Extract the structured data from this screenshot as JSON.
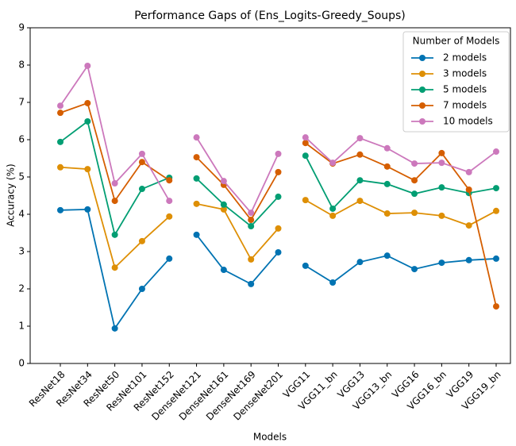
{
  "chart_data": {
    "type": "line",
    "title": "Performance Gaps of (Ens_Logits-Greedy_Soups)",
    "xlabel": "Models",
    "ylabel": "Accuracy (%)",
    "categories": [
      "ResNet18",
      "ResNet34",
      "ResNet50",
      "ResNet101",
      "ResNet152",
      "DenseNet121",
      "DenseNet161",
      "DenseNet169",
      "DenseNet201",
      "VGG11",
      "VGG11_bn",
      "VGG13",
      "VGG13_bn",
      "VGG16",
      "VGG16_bn",
      "VGG19",
      "VGG19_bn"
    ],
    "line_breaks_after": [
      "ResNet152",
      "DenseNet201"
    ],
    "ylim": [
      0,
      9
    ],
    "yticks": [
      0,
      1,
      2,
      3,
      4,
      5,
      6,
      7,
      8,
      9
    ],
    "legend_title": "Number of Models",
    "legend": "upper right",
    "series": [
      {
        "name": "2 models",
        "color": "#0173b2",
        "values": [
          4.11,
          4.13,
          0.94,
          2.0,
          2.81,
          3.45,
          2.51,
          2.13,
          2.98,
          2.62,
          2.17,
          2.72,
          2.89,
          2.53,
          2.7,
          2.77,
          2.81
        ]
      },
      {
        "name": "3 models",
        "color": "#de8f05",
        "values": [
          5.26,
          5.21,
          2.57,
          3.28,
          3.94,
          4.28,
          4.13,
          2.79,
          3.62,
          4.38,
          3.96,
          4.36,
          4.02,
          4.04,
          3.96,
          3.7,
          4.09
        ]
      },
      {
        "name": "5 models",
        "color": "#029e73",
        "values": [
          5.94,
          6.49,
          3.45,
          4.68,
          4.98,
          4.96,
          4.26,
          3.68,
          4.47,
          5.57,
          4.15,
          4.91,
          4.81,
          4.55,
          4.72,
          4.57,
          4.7
        ]
      },
      {
        "name": "7 models",
        "color": "#d55e00",
        "values": [
          6.72,
          6.98,
          4.36,
          5.4,
          4.91,
          5.53,
          4.79,
          3.85,
          5.13,
          5.91,
          5.36,
          5.6,
          5.28,
          4.91,
          5.64,
          4.66,
          1.53
        ]
      },
      {
        "name": "10 models",
        "color": "#cc78bc",
        "values": [
          6.91,
          7.98,
          4.83,
          5.62,
          4.36,
          6.06,
          4.89,
          4.04,
          5.62,
          6.06,
          5.38,
          6.04,
          5.77,
          5.36,
          5.38,
          5.13,
          5.68
        ]
      }
    ]
  }
}
